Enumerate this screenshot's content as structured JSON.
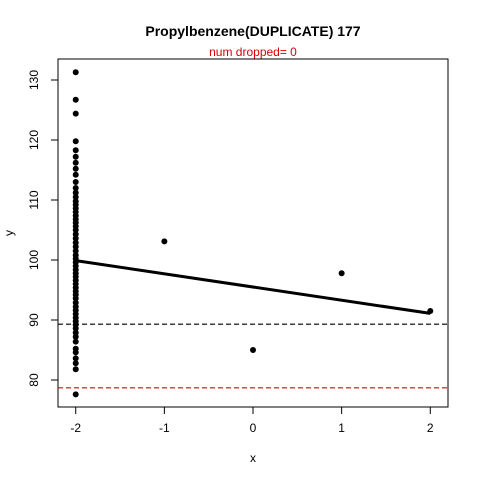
{
  "chart_data": {
    "type": "scatter",
    "title": "Propylbenzene(DUPLICATE) 177",
    "subtitle": "num dropped= 0",
    "xlabel": "x",
    "ylabel": "y",
    "xlim": [
      -2.2,
      2.2
    ],
    "ylim": [
      75.5,
      133.5
    ],
    "x_ticks": [
      -2,
      -1,
      0,
      1,
      2
    ],
    "y_ticks": [
      80,
      90,
      100,
      110,
      120,
      130
    ],
    "grid": false,
    "legend": "none",
    "series": [
      {
        "points": [
          {
            "x": -2,
            "y": 77.6
          },
          {
            "x": -2,
            "y": 81.8
          },
          {
            "x": -2,
            "y": 82.8
          },
          {
            "x": -2,
            "y": 83.6
          },
          {
            "x": -2,
            "y": 84.6
          },
          {
            "x": -2,
            "y": 85.2
          },
          {
            "x": -2,
            "y": 86.4
          },
          {
            "x": -2,
            "y": 87.2
          },
          {
            "x": -2,
            "y": 87.9
          },
          {
            "x": -2,
            "y": 88.6
          },
          {
            "x": -2,
            "y": 89.2
          },
          {
            "x": -2,
            "y": 89.8
          },
          {
            "x": -2,
            "y": 90.4
          },
          {
            "x": -2,
            "y": 91.0
          },
          {
            "x": -2,
            "y": 91.6
          },
          {
            "x": -2,
            "y": 92.2
          },
          {
            "x": -2,
            "y": 92.9
          },
          {
            "x": -2,
            "y": 93.6
          },
          {
            "x": -2,
            "y": 94.2
          },
          {
            "x": -2,
            "y": 94.8
          },
          {
            "x": -2,
            "y": 95.4
          },
          {
            "x": -2,
            "y": 96.0
          },
          {
            "x": -2,
            "y": 96.6
          },
          {
            "x": -2,
            "y": 97.2
          },
          {
            "x": -2,
            "y": 97.8
          },
          {
            "x": -2,
            "y": 98.4
          },
          {
            "x": -2,
            "y": 99.0
          },
          {
            "x": -2,
            "y": 99.6
          },
          {
            "x": -2,
            "y": 100.2
          },
          {
            "x": -2,
            "y": 100.8
          },
          {
            "x": -2,
            "y": 101.5
          },
          {
            "x": -2,
            "y": 102.2
          },
          {
            "x": -2,
            "y": 102.9
          },
          {
            "x": -2,
            "y": 103.6
          },
          {
            "x": -2,
            "y": 104.3
          },
          {
            "x": -2,
            "y": 105.0
          },
          {
            "x": -2,
            "y": 105.6
          },
          {
            "x": -2,
            "y": 106.2
          },
          {
            "x": -2,
            "y": 106.8
          },
          {
            "x": -2,
            "y": 107.4
          },
          {
            "x": -2,
            "y": 108.0
          },
          {
            "x": -2,
            "y": 108.6
          },
          {
            "x": -2,
            "y": 109.2
          },
          {
            "x": -2,
            "y": 109.8
          },
          {
            "x": -2,
            "y": 110.5
          },
          {
            "x": -2,
            "y": 111.2
          },
          {
            "x": -2,
            "y": 112.0
          },
          {
            "x": -2,
            "y": 113.0
          },
          {
            "x": -2,
            "y": 114.2
          },
          {
            "x": -2,
            "y": 115.2
          },
          {
            "x": -2,
            "y": 116.2
          },
          {
            "x": -2,
            "y": 117.2
          },
          {
            "x": -2,
            "y": 118.3
          },
          {
            "x": -2,
            "y": 119.8
          },
          {
            "x": -2,
            "y": 124.4
          },
          {
            "x": -2,
            "y": 126.7
          },
          {
            "x": -2,
            "y": 131.3
          },
          {
            "x": -1,
            "y": 103.1
          },
          {
            "x": 0,
            "y": 85.0
          },
          {
            "x": 1,
            "y": 97.8
          },
          {
            "x": 2,
            "y": 91.5
          }
        ]
      }
    ],
    "fit_line": {
      "x": [
        -2,
        2
      ],
      "y": [
        99.9,
        91.1
      ]
    },
    "reference_lines": [
      {
        "y": 89.3,
        "color": "#000000",
        "style": "dashed"
      },
      {
        "y": 78.7,
        "color": "#dd0000",
        "style": "dashed"
      }
    ],
    "colors": {
      "points": "#000000",
      "subtitle": "#dd0000",
      "fit_line": "#000000"
    }
  }
}
